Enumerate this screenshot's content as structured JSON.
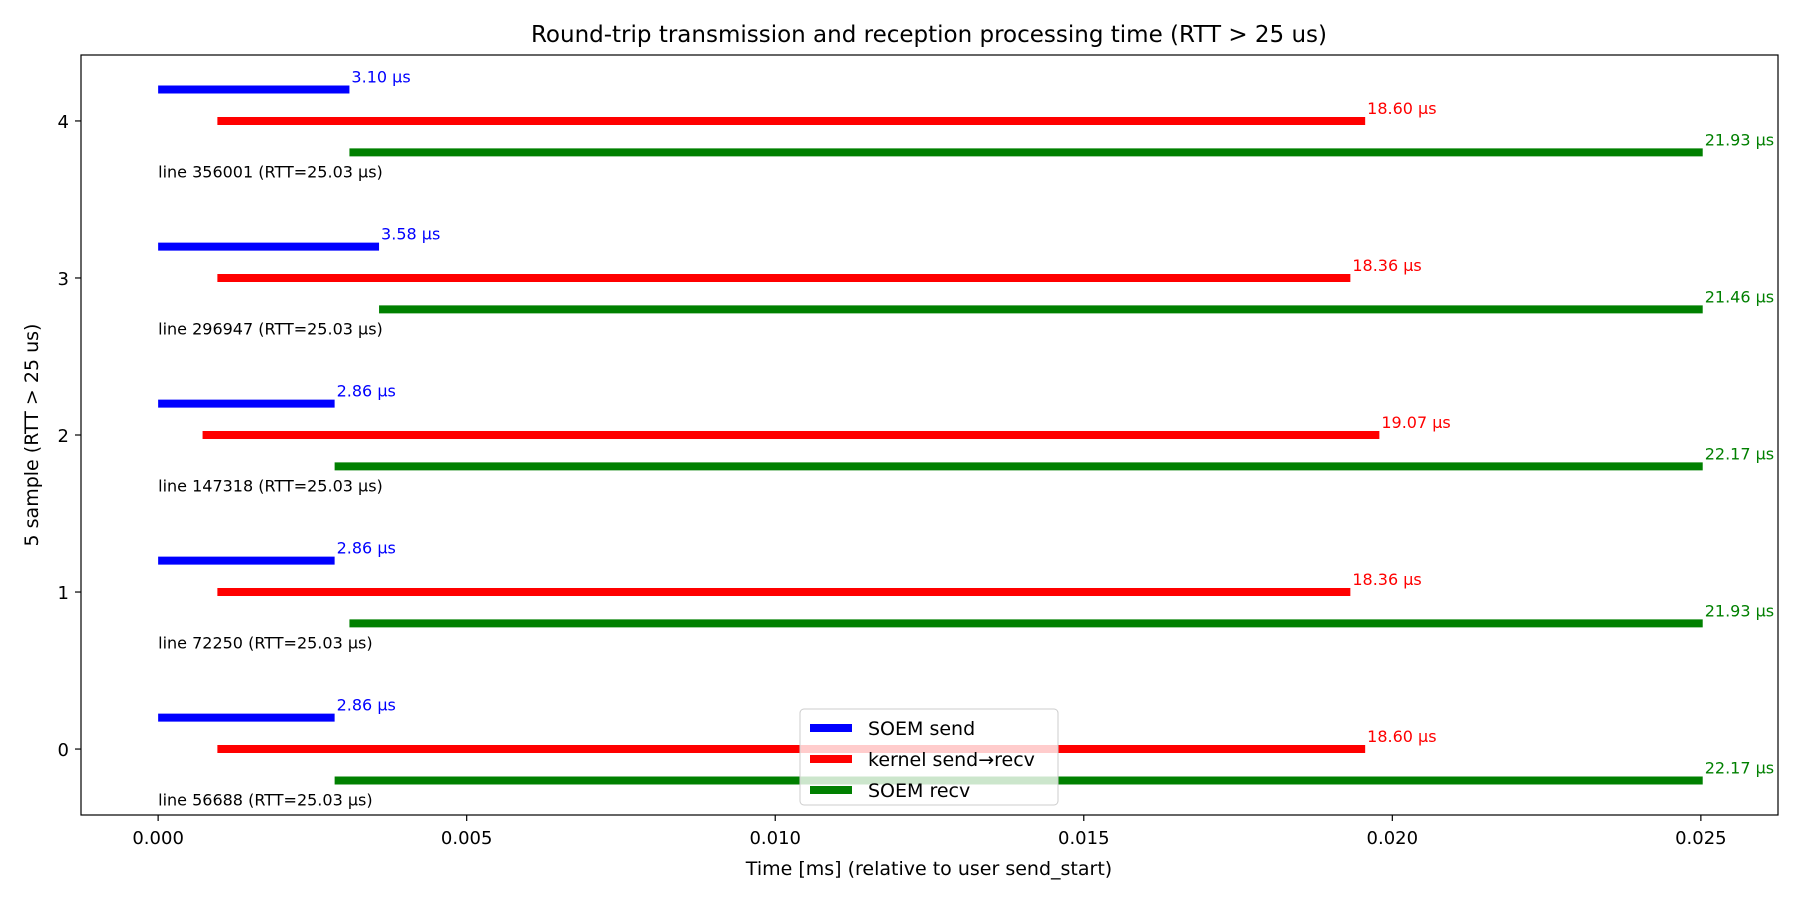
{
  "chart_data": {
    "type": "bar",
    "orientation": "horizontal-segments",
    "title": "Round-trip transmission and reception processing time (RTT > 25 us)",
    "xlabel": "Time [ms] (relative to user send_start)",
    "ylabel": "5 sample (RTT > 25 us)",
    "xlim": [
      -0.00125,
      0.02625
    ],
    "ylim": [
      -0.42,
      4.42
    ],
    "xticks": [
      "0.000",
      "0.005",
      "0.010",
      "0.015",
      "0.020",
      "0.025"
    ],
    "xtick_values": [
      0.0,
      0.005,
      0.01,
      0.015,
      0.02,
      0.025
    ],
    "yticks": [
      "0",
      "1",
      "2",
      "3",
      "4"
    ],
    "grid": false,
    "legend_position": "bottom-center",
    "series": [
      {
        "name": "SOEM send",
        "color": "#0000ff",
        "y_offset": 0.2
      },
      {
        "name": "kernel send→recv",
        "color": "#ff0000",
        "y_offset": 0.0
      },
      {
        "name": "SOEM recv",
        "color": "#008000",
        "y_offset": -0.2
      }
    ],
    "samples": [
      {
        "y": 0,
        "label": "line 56688 (RTT=25.03 µs)",
        "segments": [
          {
            "start": 0.0,
            "end": 0.00286,
            "text": "2.86 µs"
          },
          {
            "start": 0.00096,
            "end": 0.01956,
            "text": "18.60 µs"
          },
          {
            "start": 0.00286,
            "end": 0.02503,
            "text": "22.17 µs"
          }
        ]
      },
      {
        "y": 1,
        "label": "line 72250 (RTT=25.03 µs)",
        "segments": [
          {
            "start": 0.0,
            "end": 0.00286,
            "text": "2.86 µs"
          },
          {
            "start": 0.00096,
            "end": 0.01932,
            "text": "18.36 µs"
          },
          {
            "start": 0.0031,
            "end": 0.02503,
            "text": "21.93 µs"
          }
        ]
      },
      {
        "y": 2,
        "label": "line 147318 (RTT=25.03 µs)",
        "segments": [
          {
            "start": 0.0,
            "end": 0.00286,
            "text": "2.86 µs"
          },
          {
            "start": 0.00072,
            "end": 0.01979,
            "text": "19.07 µs"
          },
          {
            "start": 0.00286,
            "end": 0.02503,
            "text": "22.17 µs"
          }
        ]
      },
      {
        "y": 3,
        "label": "line 296947 (RTT=25.03 µs)",
        "segments": [
          {
            "start": 0.0,
            "end": 0.00358,
            "text": "3.58 µs"
          },
          {
            "start": 0.00096,
            "end": 0.01932,
            "text": "18.36 µs"
          },
          {
            "start": 0.00358,
            "end": 0.02503,
            "text": "21.46 µs"
          }
        ]
      },
      {
        "y": 4,
        "label": "line 356001 (RTT=25.03 µs)",
        "segments": [
          {
            "start": 0.0,
            "end": 0.0031,
            "text": "3.10 µs"
          },
          {
            "start": 0.00096,
            "end": 0.01956,
            "text": "18.60 µs"
          },
          {
            "start": 0.0031,
            "end": 0.02503,
            "text": "21.93 µs"
          }
        ]
      }
    ]
  }
}
